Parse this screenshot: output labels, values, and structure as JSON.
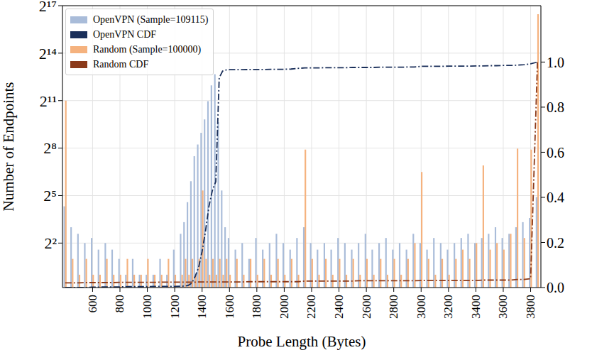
{
  "chart_data": {
    "type": "bar",
    "x_label": "Probe Length (Bytes)",
    "y_label": "Number of Endpoints",
    "log": "y",
    "grid": true,
    "legend": "upper left",
    "x": [
      400,
      450,
      500,
      550,
      600,
      650,
      700,
      750,
      800,
      850,
      900,
      950,
      1000,
      1050,
      1100,
      1150,
      1200,
      1250,
      1275,
      1300,
      1325,
      1350,
      1375,
      1400,
      1425,
      1450,
      1475,
      1500,
      1525,
      1550,
      1575,
      1600,
      1650,
      1700,
      1750,
      1800,
      1850,
      1900,
      1950,
      2000,
      2050,
      2100,
      2150,
      2200,
      2250,
      2300,
      2350,
      2400,
      2450,
      2500,
      2550,
      2600,
      2650,
      2700,
      2750,
      2800,
      2850,
      2900,
      2950,
      3000,
      3050,
      3100,
      3150,
      3200,
      3250,
      3300,
      3350,
      3400,
      3450,
      3500,
      3550,
      3600,
      3650,
      3700,
      3750,
      3800,
      3850
    ],
    "xlim": [
      380,
      3875
    ],
    "xticks": [
      600,
      800,
      1000,
      1200,
      1400,
      1600,
      1800,
      2000,
      2200,
      2400,
      2600,
      2800,
      3000,
      3200,
      3400,
      3600,
      3800
    ],
    "ylim": [
      0.57,
      131072
    ],
    "yticks": [
      {
        "value": 4,
        "label": "2²"
      },
      {
        "value": 32,
        "label": "2⁵"
      },
      {
        "value": 256,
        "label": "2⁸"
      },
      {
        "value": 2048,
        "label": "2¹¹"
      },
      {
        "value": 16384,
        "label": "2¹⁴"
      },
      {
        "value": 131072,
        "label": "2¹⁷"
      }
    ],
    "y2lim": [
      0,
      1.25
    ],
    "y2ticks": [
      {
        "value": 0,
        "label": "0.0"
      },
      0.2,
      0.4,
      0.6,
      0.8,
      {
        "value": 1,
        "label": "1.0"
      }
    ],
    "series": [
      {
        "name": "OpenVPN (Sample=109115)",
        "type": "bar",
        "color": "#a9bcd9",
        "values": [
          20,
          8,
          6,
          4,
          5,
          3,
          4,
          3,
          2,
          1,
          2,
          1,
          1,
          1,
          2,
          1,
          3,
          6,
          10,
          24,
          60,
          180,
          300,
          500,
          900,
          2000,
          4000,
          6500,
          800,
          40,
          8,
          5,
          3,
          4,
          2,
          5,
          3,
          4,
          6,
          4,
          3,
          5,
          8,
          4,
          3,
          4,
          3,
          5,
          4,
          3,
          4,
          6,
          3,
          4,
          5,
          3,
          4,
          3,
          6,
          4,
          3,
          5,
          4,
          3,
          4,
          5,
          6,
          4,
          5,
          6,
          8,
          5,
          6,
          8,
          10,
          12,
          30
        ]
      },
      {
        "name": "OpenVPN CDF",
        "type": "line",
        "axis": "y2",
        "line_style": "dashdot",
        "color": "#1a2f5a",
        "values": [
          0,
          0,
          0,
          0,
          0.002,
          0.002,
          0.003,
          0.003,
          0.003,
          0.004,
          0.004,
          0.004,
          0.004,
          0.005,
          0.005,
          0.005,
          0.005,
          0.006,
          0.007,
          0.01,
          0.02,
          0.05,
          0.09,
          0.16,
          0.25,
          0.36,
          0.43,
          0.47,
          0.93,
          0.96,
          0.965,
          0.966,
          0.966,
          0.966,
          0.967,
          0.967,
          0.967,
          0.968,
          0.968,
          0.968,
          0.969,
          0.972,
          0.974,
          0.974,
          0.974,
          0.975,
          0.975,
          0.975,
          0.975,
          0.976,
          0.976,
          0.976,
          0.976,
          0.977,
          0.977,
          0.977,
          0.977,
          0.978,
          0.978,
          0.981,
          0.981,
          0.981,
          0.981,
          0.982,
          0.982,
          0.982,
          0.982,
          0.983,
          0.983,
          0.984,
          0.984,
          0.985,
          0.985,
          0.986,
          0.988,
          0.992,
          1.0
        ]
      },
      {
        "name": "Random (Sample=100000)",
        "type": "bar",
        "color": "#f5b27e",
        "values": [
          2048,
          2,
          1,
          2,
          1,
          1,
          2,
          1,
          1,
          2,
          1,
          1,
          2,
          1,
          1,
          2,
          1,
          1,
          2,
          1,
          2,
          1,
          2,
          40,
          2,
          1,
          2,
          1,
          2,
          1,
          2,
          1,
          2,
          1,
          2,
          1,
          2,
          1,
          2,
          1,
          2,
          1,
          240,
          2,
          1,
          2,
          1,
          2,
          1,
          2,
          1,
          2,
          1,
          2,
          1,
          2,
          1,
          2,
          4,
          90,
          2,
          1,
          2,
          1,
          2,
          3,
          2,
          4,
          120,
          3,
          4,
          3,
          6,
          250,
          5,
          240,
          90000
        ]
      },
      {
        "name": "Random CDF",
        "type": "line",
        "axis": "y2",
        "line_style": "dashdot",
        "color": "#8b3a1a",
        "values": [
          0.021,
          0.021,
          0.021,
          0.022,
          0.022,
          0.022,
          0.022,
          0.022,
          0.023,
          0.023,
          0.023,
          0.023,
          0.023,
          0.023,
          0.024,
          0.024,
          0.024,
          0.024,
          0.024,
          0.024,
          0.024,
          0.024,
          0.025,
          0.025,
          0.025,
          0.025,
          0.025,
          0.025,
          0.025,
          0.025,
          0.025,
          0.025,
          0.025,
          0.025,
          0.026,
          0.026,
          0.026,
          0.026,
          0.026,
          0.026,
          0.026,
          0.026,
          0.029,
          0.029,
          0.029,
          0.029,
          0.029,
          0.029,
          0.029,
          0.029,
          0.03,
          0.03,
          0.03,
          0.03,
          0.03,
          0.03,
          0.03,
          0.03,
          0.03,
          0.031,
          0.031,
          0.031,
          0.031,
          0.031,
          0.031,
          0.031,
          0.031,
          0.031,
          0.033,
          0.033,
          0.033,
          0.033,
          0.033,
          0.036,
          0.036,
          0.039,
          1.0
        ]
      }
    ]
  }
}
